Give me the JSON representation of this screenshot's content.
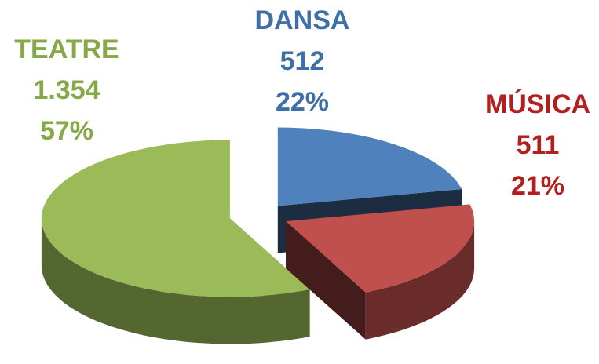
{
  "chart_data": {
    "type": "pie",
    "categories": [
      "DANSA",
      "MÚSICA",
      "TEATRE"
    ],
    "values": [
      512,
      511,
      1354
    ],
    "value_labels": [
      "512",
      "511",
      "1.354"
    ],
    "percents": [
      22,
      21,
      57
    ],
    "percent_labels": [
      "22%",
      "21%",
      "57%"
    ],
    "colors": [
      "#4f81bd",
      "#c0504d",
      "#9bbb59"
    ]
  }
}
